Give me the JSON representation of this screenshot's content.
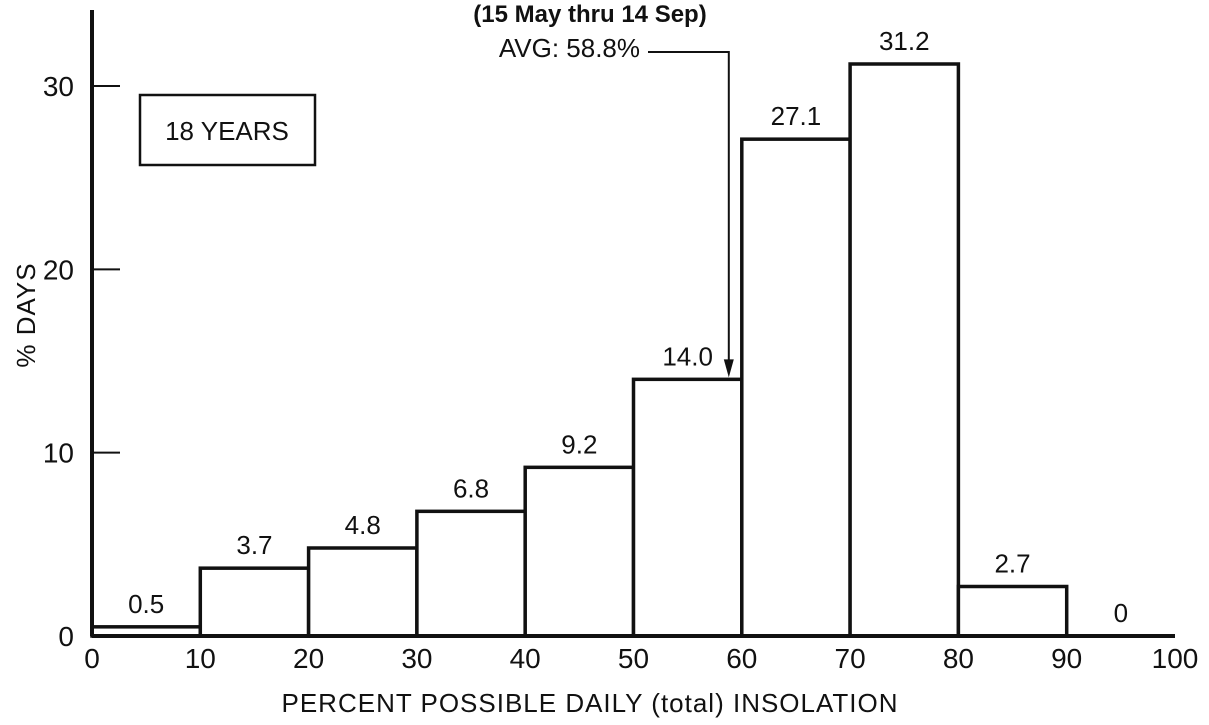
{
  "chart_data": {
    "type": "bar",
    "title": "",
    "subtitle": "(15 May thru 14 Sep)",
    "xlabel": "PERCENT POSSIBLE DAILY (total) INSOLATION",
    "ylabel": "% DAYS",
    "xlim": [
      0,
      100
    ],
    "ylim": [
      0,
      30
    ],
    "x_ticks": [
      "0",
      "10",
      "20",
      "30",
      "40",
      "50",
      "60",
      "70",
      "80",
      "90",
      "100"
    ],
    "y_ticks": [
      "0",
      "10",
      "20",
      "30"
    ],
    "bins": [
      [
        0,
        10
      ],
      [
        10,
        20
      ],
      [
        20,
        30
      ],
      [
        30,
        40
      ],
      [
        40,
        50
      ],
      [
        50,
        60
      ],
      [
        60,
        70
      ],
      [
        70,
        80
      ],
      [
        80,
        90
      ],
      [
        90,
        100
      ]
    ],
    "values": [
      0.5,
      3.7,
      4.8,
      6.8,
      9.2,
      14.0,
      27.1,
      31.2,
      2.7,
      0
    ],
    "value_labels": [
      "0.5",
      "3.7",
      "4.8",
      "6.8",
      "9.2",
      "14.0",
      "27.1",
      "31.2",
      "2.7",
      "0"
    ],
    "annotations": {
      "box_label": "18 YEARS",
      "avg_label": "AVG: 58.8%",
      "avg_value": 58.8
    },
    "grid": false,
    "bar_color": "#ffffff",
    "line_color": "#111111"
  }
}
